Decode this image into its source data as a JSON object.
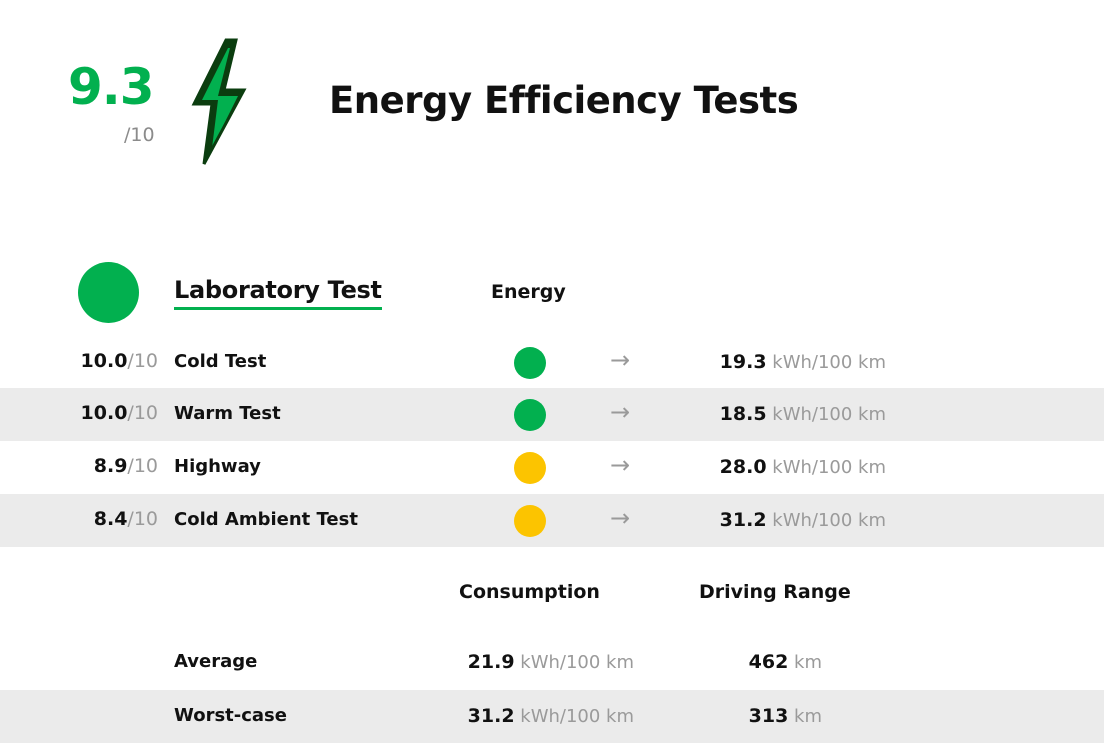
{
  "header": {
    "score": "9.3",
    "score_max": "/10",
    "title": "Energy Efficiency Tests",
    "bolt_color_dark": "#0b3d0f",
    "bolt_color_light": "#02b04f"
  },
  "lab": {
    "title": "Laboratory Test",
    "energy_header": "Energy",
    "rows": [
      {
        "score": "10.0",
        "max": "/10",
        "name": "Cold Test",
        "status_color": "#02b04f",
        "arrow": "→",
        "value": "19.3",
        "unit": " kWh/100 km"
      },
      {
        "score": "10.0",
        "max": "/10",
        "name": "Warm Test",
        "status_color": "#02b04f",
        "arrow": "→",
        "value": "18.5",
        "unit": " kWh/100 km"
      },
      {
        "score": "8.9",
        "max": "/10",
        "name": "Highway",
        "status_color": "#fcc400",
        "arrow": "→",
        "value": "28.0",
        "unit": " kWh/100 km"
      },
      {
        "score": "8.4",
        "max": "/10",
        "name": "Cold Ambient Test",
        "status_color": "#fcc400",
        "arrow": "→",
        "value": "31.2",
        "unit": " kWh/100 km"
      }
    ]
  },
  "summary": {
    "consumption_header": "Consumption",
    "range_header": "Driving Range",
    "rows": [
      {
        "label": "Average",
        "consumption": "21.9",
        "consumption_unit": " kWh/100 km",
        "range": "462",
        "range_unit": " km"
      },
      {
        "label": "Worst-case",
        "consumption": "31.2",
        "consumption_unit": " kWh/100 km",
        "range": "313",
        "range_unit": " km"
      }
    ]
  }
}
